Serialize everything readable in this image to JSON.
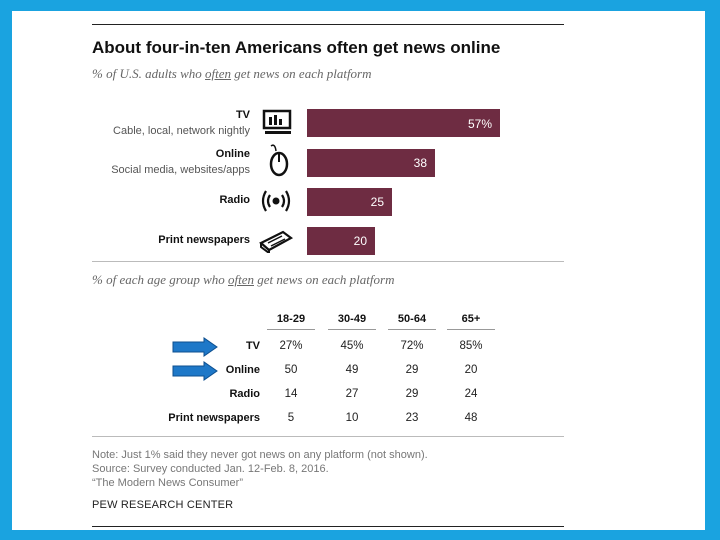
{
  "title": "About four-in-ten Americans often get news online",
  "subtitle1": {
    "pre": "% of U.S. adults who ",
    "em": "often",
    "post": " get news on each platform"
  },
  "subtitle2": {
    "pre": "% of each age group who ",
    "em": "often",
    "post": " get news on each platform"
  },
  "chart_data": {
    "type": "bar",
    "orientation": "horizontal",
    "categories": [
      "TV",
      "Online",
      "Radio",
      "Print newspapers"
    ],
    "descriptions": [
      "Cable, local, network nightly",
      "Social media, websites/apps",
      "",
      ""
    ],
    "values": [
      57,
      38,
      25,
      20
    ],
    "labels": [
      "57%",
      "38",
      "25",
      "20"
    ],
    "bar_color": "#6e2c42",
    "xlim": [
      0,
      100
    ]
  },
  "age_table": {
    "columns": [
      "18-29",
      "30-49",
      "50-64",
      "65+"
    ],
    "rows": [
      {
        "label": "TV",
        "values": [
          "27%",
          "45%",
          "72%",
          "85%"
        ]
      },
      {
        "label": "Online",
        "values": [
          "50",
          "49",
          "29",
          "20"
        ]
      },
      {
        "label": "Radio",
        "values": [
          "14",
          "27",
          "29",
          "24"
        ]
      },
      {
        "label": "Print newspapers",
        "values": [
          "5",
          "10",
          "23",
          "48"
        ]
      }
    ]
  },
  "notes": [
    "Note: Just 1% said they never got news on any platform (not shown).",
    "Source: Survey conducted Jan. 12-Feb. 8, 2016.",
    "“The Modern News Consumer”"
  ],
  "brand": "PEW RESEARCH CENTER",
  "icons": [
    "tv-icon",
    "mouse-icon",
    "radio-icon",
    "newspaper-icon"
  ],
  "colors": {
    "background": "#1aa3e0",
    "bar": "#6e2c42",
    "arrow": "#1e78c8"
  }
}
